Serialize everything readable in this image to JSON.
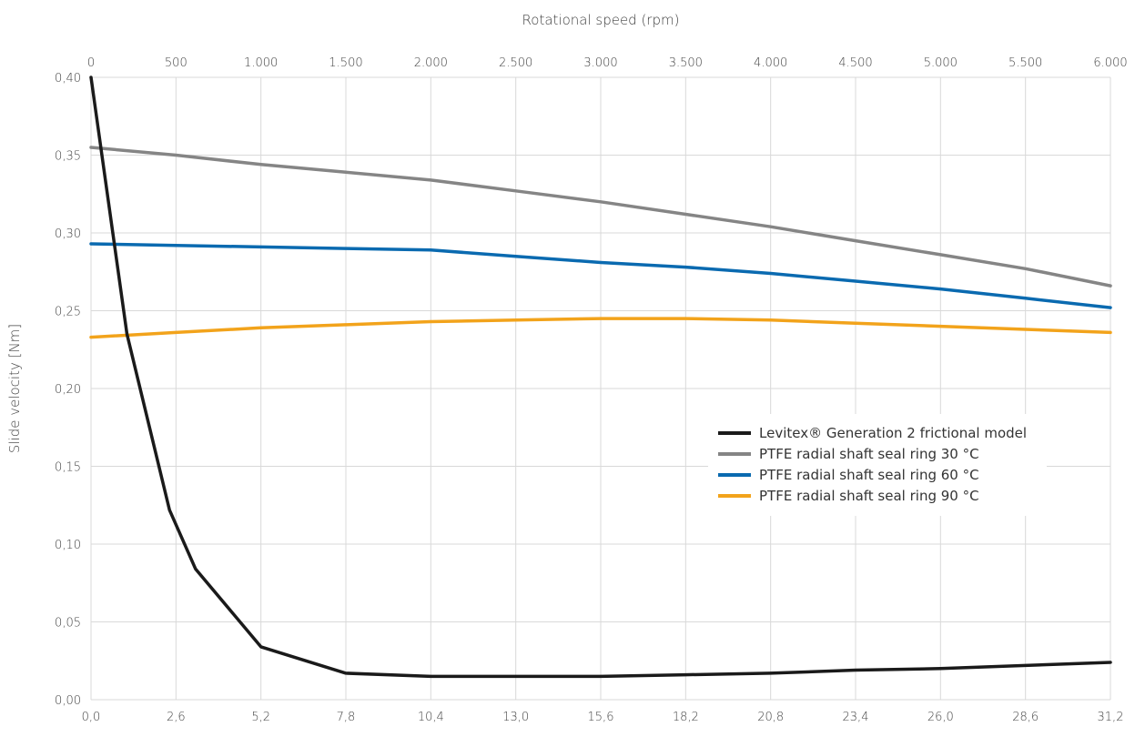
{
  "chart_data": {
    "type": "line",
    "x_top_label": "Rotational speed (rpm)",
    "ylabel": "Slide velocity [Nm]",
    "x_ticks_bottom": [
      "0,0",
      "2,6",
      "5,2",
      "7,8",
      "10,4",
      "13,0",
      "15,6",
      "18,2",
      "20,8",
      "23,4",
      "26,0",
      "28,6",
      "31,2"
    ],
    "x_ticks_top": [
      "0",
      "500",
      "1.000",
      "1.500",
      "2.000",
      "2.500",
      "3.000",
      "3.500",
      "4.000",
      "4.500",
      "5.000",
      "5.500",
      "6.000"
    ],
    "y_ticks": [
      "0,40",
      "0,35",
      "0,30",
      "0,25",
      "0,20",
      "0,15",
      "0,10",
      "0,05",
      "0,00"
    ],
    "xlim": [
      0,
      31.2
    ],
    "ylim": [
      0,
      0.4
    ],
    "grid": true,
    "legend_position": "center-right",
    "series": [
      {
        "name": "Levitex® Generation 2 frictional model",
        "color": "#1a1a1a",
        "x": [
          0.0,
          1.1,
          2.4,
          3.2,
          5.2,
          7.8,
          10.4,
          13.0,
          15.6,
          18.2,
          20.8,
          23.4,
          26.0,
          28.6,
          31.2
        ],
        "y": [
          0.4,
          0.235,
          0.122,
          0.084,
          0.034,
          0.017,
          0.015,
          0.015,
          0.015,
          0.016,
          0.017,
          0.019,
          0.02,
          0.022,
          0.024
        ]
      },
      {
        "name": "PTFE radial shaft seal ring 30 °C",
        "color": "#858585",
        "x": [
          0.0,
          2.6,
          5.2,
          7.8,
          10.4,
          13.0,
          15.6,
          18.2,
          20.8,
          23.4,
          26.0,
          28.6,
          31.2
        ],
        "y": [
          0.355,
          0.35,
          0.344,
          0.339,
          0.334,
          0.327,
          0.32,
          0.312,
          0.304,
          0.295,
          0.286,
          0.277,
          0.266
        ]
      },
      {
        "name": "PTFE radial shaft seal ring 60 °C",
        "color": "#0a6ab0",
        "x": [
          0.0,
          2.6,
          5.2,
          7.8,
          10.4,
          13.0,
          15.6,
          18.2,
          20.8,
          23.4,
          26.0,
          28.6,
          31.2
        ],
        "y": [
          0.293,
          0.292,
          0.291,
          0.29,
          0.289,
          0.285,
          0.281,
          0.278,
          0.274,
          0.269,
          0.264,
          0.258,
          0.252
        ]
      },
      {
        "name": "PTFE radial shaft seal ring 90 °C",
        "color": "#f2a31b",
        "x": [
          0.0,
          2.6,
          5.2,
          7.8,
          10.4,
          13.0,
          15.6,
          18.2,
          20.8,
          23.4,
          26.0,
          28.6,
          31.2
        ],
        "y": [
          0.233,
          0.236,
          0.239,
          0.241,
          0.243,
          0.244,
          0.245,
          0.245,
          0.244,
          0.242,
          0.24,
          0.238,
          0.236
        ]
      }
    ]
  }
}
